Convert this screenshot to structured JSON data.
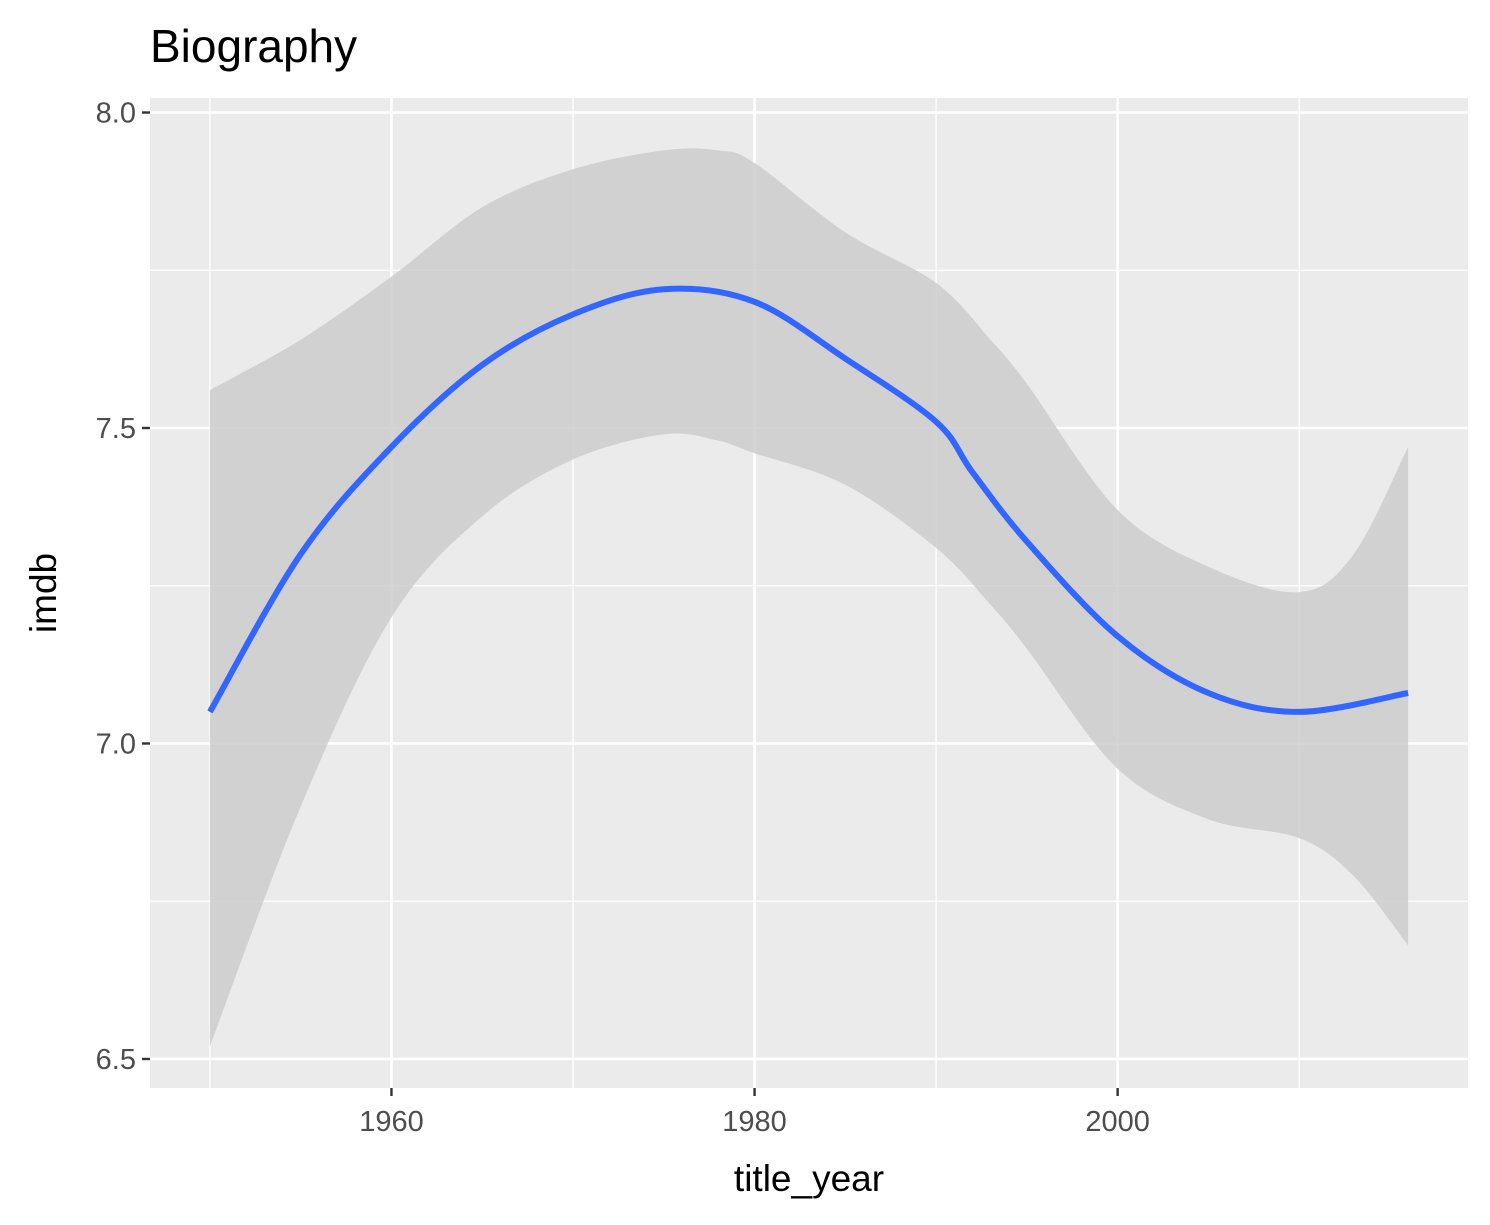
{
  "chart_data": {
    "type": "line",
    "title": "Biography",
    "xlabel": "title_year",
    "ylabel": "imdb",
    "xlim": [
      1946.7,
      2019.3
    ],
    "ylim": [
      6.454,
      8.023
    ],
    "x_ticks": [
      1960,
      1980,
      2000
    ],
    "x_tick_labels": [
      "1960",
      "1980",
      "2000"
    ],
    "x_minor_ticks": [
      1950,
      1970,
      1990,
      2010
    ],
    "y_ticks": [
      6.5,
      7.0,
      7.5,
      8.0
    ],
    "y_tick_labels": [
      "6.5",
      "7.0",
      "7.5",
      "8.0"
    ],
    "y_minor_ticks": [
      6.75,
      7.25,
      7.75
    ],
    "grid": true,
    "background": "#ebebeb",
    "series": [
      {
        "kind": "smooth-line",
        "color": "#3366ff",
        "x": [
          1950,
          1955,
          1960,
          1965,
          1970,
          1975,
          1980,
          1985,
          1990,
          1992,
          1995,
          2000,
          2005,
          2010,
          2016
        ],
        "y": [
          7.05,
          7.3,
          7.47,
          7.6,
          7.68,
          7.72,
          7.7,
          7.61,
          7.51,
          7.43,
          7.32,
          7.17,
          7.08,
          7.05,
          7.08
        ]
      },
      {
        "kind": "confidence-band",
        "color": "#cccccc",
        "x": [
          1950,
          1955,
          1960,
          1965,
          1970,
          1975,
          1978,
          1980,
          1985,
          1990,
          1993,
          1995,
          2000,
          2005,
          2010,
          2013,
          2016
        ],
        "upper": [
          7.56,
          7.64,
          7.74,
          7.85,
          7.91,
          7.94,
          7.94,
          7.92,
          7.81,
          7.73,
          7.64,
          7.57,
          7.37,
          7.28,
          7.24,
          7.3,
          7.47
        ],
        "lower": [
          6.52,
          6.9,
          7.2,
          7.36,
          7.45,
          7.49,
          7.48,
          7.46,
          7.41,
          7.31,
          7.22,
          7.15,
          6.96,
          6.88,
          6.85,
          6.79,
          6.68
        ]
      }
    ]
  }
}
